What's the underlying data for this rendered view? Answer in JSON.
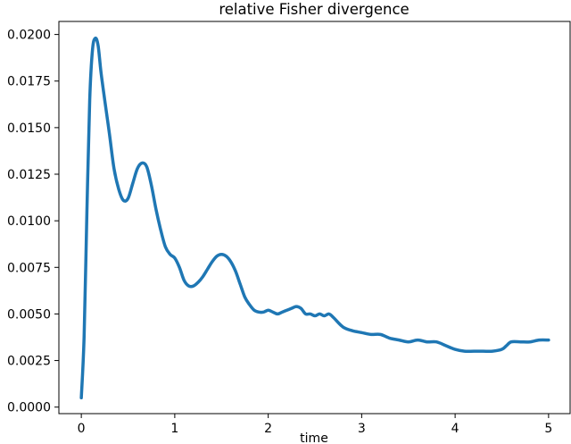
{
  "chart_data": {
    "type": "line",
    "title": "relative Fisher divergence",
    "xlabel": "time",
    "ylabel": "",
    "xlim": [
      -0.24,
      5.24
    ],
    "ylim": [
      -0.00035,
      0.0207
    ],
    "xticks": [
      0,
      1,
      2,
      3,
      4,
      5
    ],
    "xtick_labels": [
      "0",
      "1",
      "2",
      "3",
      "4",
      "5"
    ],
    "yticks": [
      0.0,
      0.0025,
      0.005,
      0.0075,
      0.01,
      0.0125,
      0.015,
      0.0175,
      0.02
    ],
    "ytick_labels": [
      "0.0000",
      "0.0025",
      "0.0050",
      "0.0075",
      "0.0100",
      "0.0125",
      "0.0150",
      "0.0175",
      "0.0200"
    ],
    "grid": false,
    "series": [
      {
        "color": "#1f77b4",
        "x": [
          0.0,
          0.03,
          0.06,
          0.09,
          0.12,
          0.15,
          0.18,
          0.21,
          0.25,
          0.3,
          0.35,
          0.4,
          0.45,
          0.5,
          0.55,
          0.6,
          0.65,
          0.7,
          0.75,
          0.8,
          0.85,
          0.9,
          0.95,
          1.0,
          1.05,
          1.1,
          1.15,
          1.2,
          1.25,
          1.3,
          1.35,
          1.4,
          1.45,
          1.5,
          1.55,
          1.6,
          1.65,
          1.7,
          1.75,
          1.8,
          1.85,
          1.9,
          1.95,
          2.0,
          2.05,
          2.1,
          2.15,
          2.2,
          2.25,
          2.3,
          2.35,
          2.4,
          2.45,
          2.5,
          2.55,
          2.6,
          2.65,
          2.7,
          2.8,
          2.9,
          3.0,
          3.1,
          3.2,
          3.3,
          3.4,
          3.5,
          3.6,
          3.7,
          3.8,
          3.9,
          4.0,
          4.1,
          4.2,
          4.3,
          4.4,
          4.5,
          4.55,
          4.6,
          4.7,
          4.8,
          4.9,
          5.0
        ],
        "y": [
          0.0005,
          0.0038,
          0.0105,
          0.0165,
          0.0192,
          0.0198,
          0.0194,
          0.018,
          0.0165,
          0.0147,
          0.0128,
          0.0117,
          0.0111,
          0.0112,
          0.012,
          0.0128,
          0.0131,
          0.0129,
          0.0119,
          0.0106,
          0.0095,
          0.0086,
          0.0082,
          0.008,
          0.0075,
          0.0068,
          0.0065,
          0.0065,
          0.0067,
          0.007,
          0.0074,
          0.0078,
          0.0081,
          0.0082,
          0.0081,
          0.0078,
          0.0073,
          0.0066,
          0.0059,
          0.0055,
          0.0052,
          0.0051,
          0.0051,
          0.0052,
          0.0051,
          0.005,
          0.0051,
          0.0052,
          0.0053,
          0.0054,
          0.0053,
          0.005,
          0.005,
          0.0049,
          0.005,
          0.0049,
          0.005,
          0.0048,
          0.0043,
          0.0041,
          0.004,
          0.0039,
          0.0039,
          0.0037,
          0.0036,
          0.0035,
          0.0036,
          0.0035,
          0.0035,
          0.0033,
          0.0031,
          0.003,
          0.003,
          0.003,
          0.003,
          0.0031,
          0.0033,
          0.0035,
          0.0035,
          0.0035,
          0.0036,
          0.0036
        ]
      }
    ]
  }
}
